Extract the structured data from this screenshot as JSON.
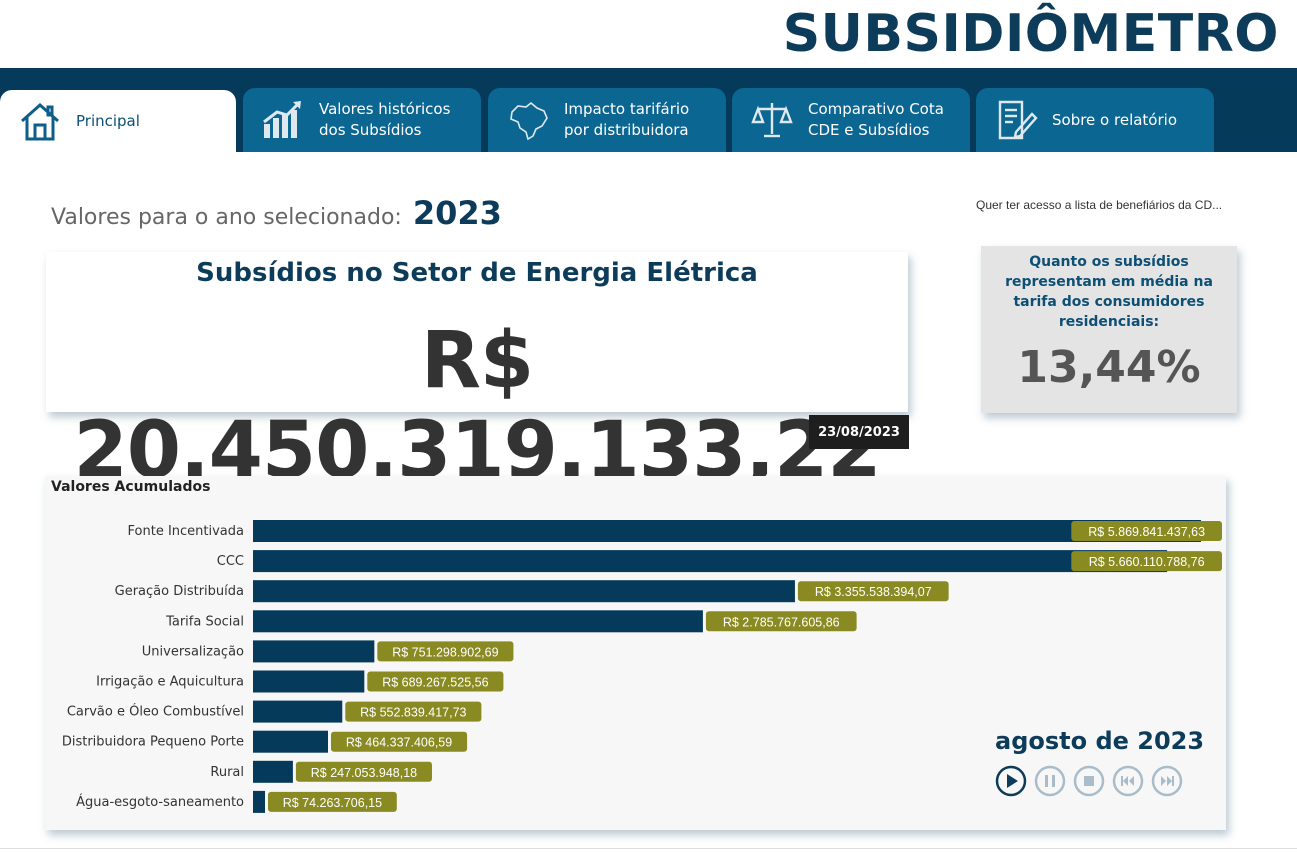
{
  "app": {
    "title": "SUBSIDIÔMETRO"
  },
  "tabs": [
    {
      "label": "Principal",
      "icon": "house-icon",
      "active": true
    },
    {
      "label": "Valores históricos\ndos Subsídios",
      "icon": "bar-growth-icon",
      "active": false
    },
    {
      "label": "Impacto tarifário\npor distribuidora",
      "icon": "brazil-map-icon",
      "active": false
    },
    {
      "label": "Comparativo Cota\nCDE e Subsídios",
      "icon": "scales-icon",
      "active": false
    },
    {
      "label": "Sobre o relatório",
      "icon": "document-edit-icon",
      "active": false
    }
  ],
  "selection": {
    "prefix": "Valores para o ano selecionado:",
    "year": "2023"
  },
  "access_link": "Quer ter acesso a lista de benefiários da CD...",
  "main_card": {
    "title": "Subsídios no Setor de Energia Elétrica",
    "value": "R$ 20.450.319.133,22",
    "date": "23/08/2023"
  },
  "side_card": {
    "question": "Quanto os subsídios representam em média na tarifa dos consumidores residenciais:",
    "value": "13,44%"
  },
  "chart_data": {
    "type": "bar",
    "orientation": "horizontal",
    "title": "Valores Acumulados",
    "categories": [
      "Fonte Incentivada",
      "CCC",
      "Geração Distribuída",
      "Tarifa Social",
      "Universalização",
      "Irrigação e Aquicultura",
      "Carvão e Óleo Combustível",
      "Distribuidora Pequeno Porte",
      "Rural",
      "Água-esgoto-saneamento"
    ],
    "values": [
      5869841437.63,
      5660110788.76,
      3355538394.07,
      2785767605.86,
      751298902.69,
      689267525.56,
      552839417.73,
      464337406.59,
      247053948.18,
      74263706.15
    ],
    "data_labels": [
      "R$ 5.869.841.437,63",
      "R$ 5.660.110.788,76",
      "R$ 3.355.538.394,07",
      "R$ 2.785.767.605,86",
      "R$ 751.298.902,69",
      "R$ 689.267.525,56",
      "R$ 552.839.417,73",
      "R$ 464.337.406,59",
      "R$ 247.053.948,18",
      "R$ 74.263.706,15"
    ],
    "bar_color": "#063a5a",
    "label_color": "#8a8a22",
    "xlim": [
      0,
      5869841437.63
    ],
    "grid": false
  },
  "player": {
    "month_label": "agosto de 2023",
    "buttons": [
      {
        "name": "play-button",
        "icon": "play-icon"
      },
      {
        "name": "pause-button",
        "icon": "pause-icon"
      },
      {
        "name": "stop-button",
        "icon": "stop-icon"
      },
      {
        "name": "previous-button",
        "icon": "skip-back-icon"
      },
      {
        "name": "next-button",
        "icon": "skip-forward-icon"
      }
    ],
    "active_color": "#0d3b5a",
    "inactive_color": "#a9bcc9"
  }
}
